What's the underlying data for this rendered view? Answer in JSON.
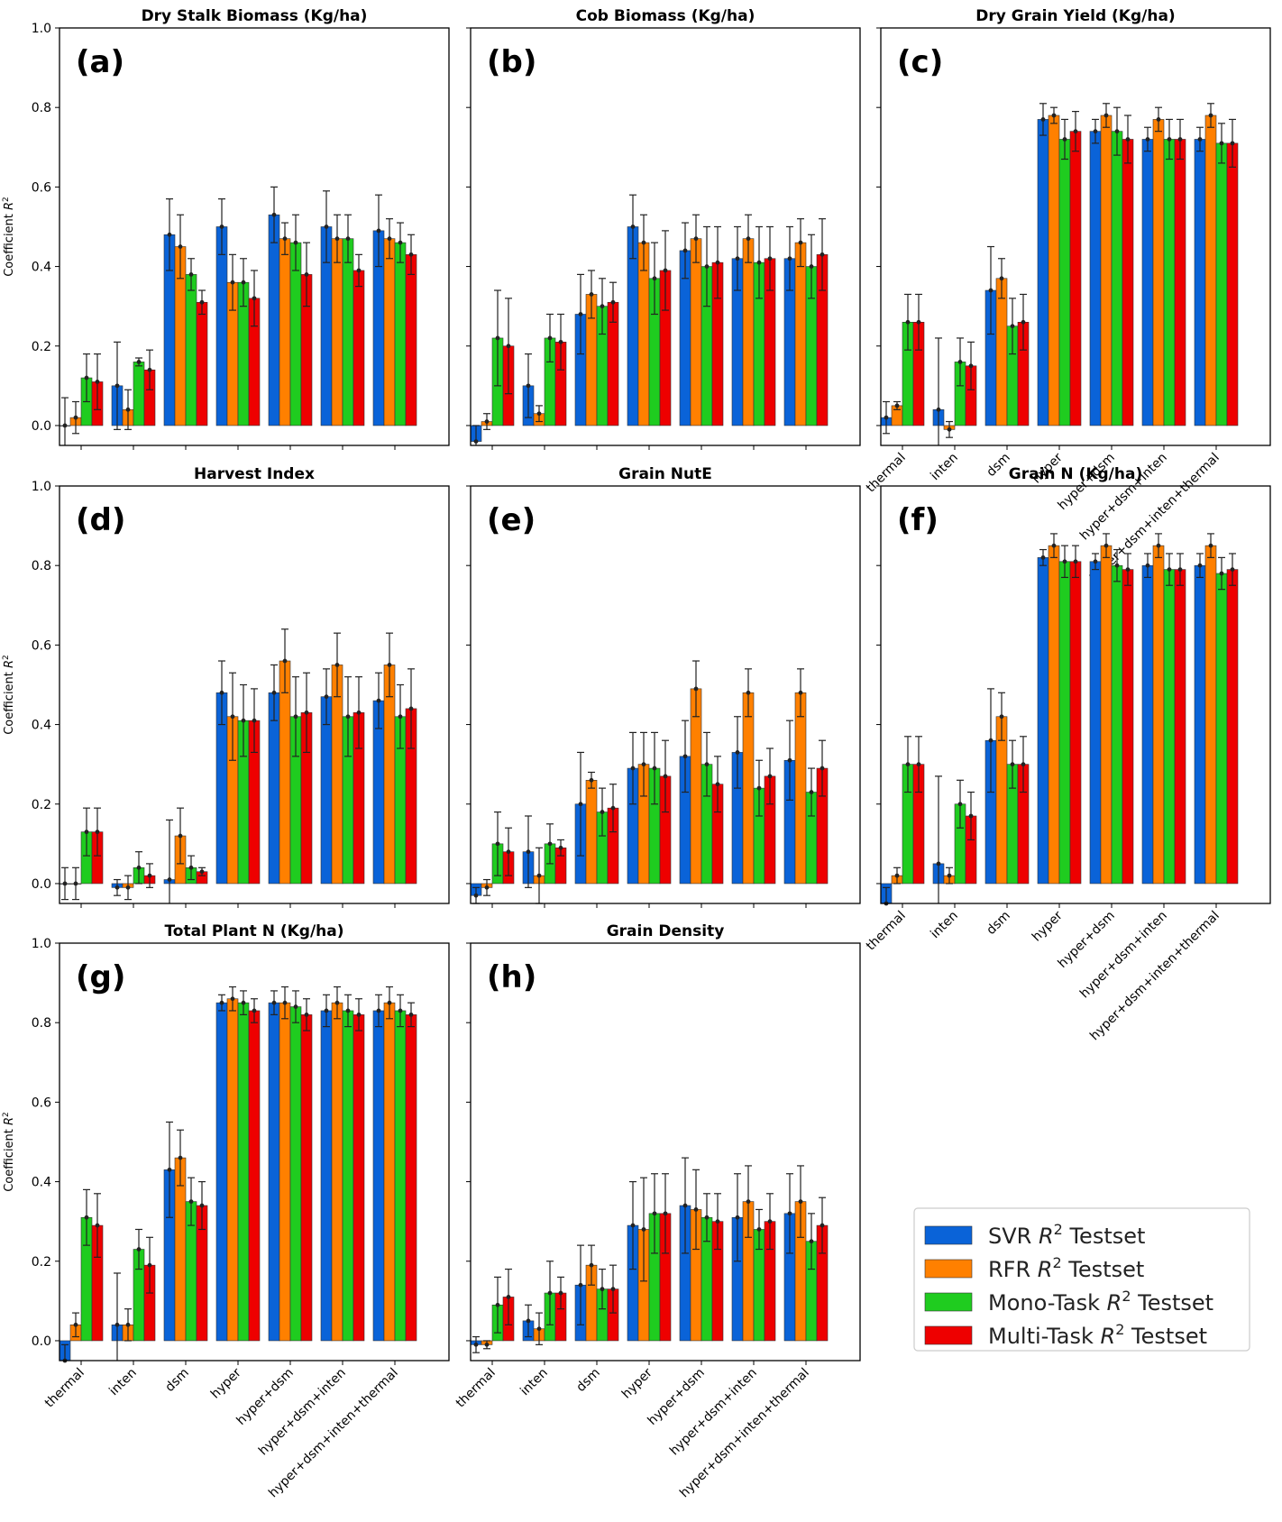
{
  "chart_data": {
    "type": "bar",
    "categories": [
      "thermal",
      "inten",
      "dsm",
      "hyper",
      "hyper+dsm",
      "hyper+dsm+inten",
      "hyper+dsm+inten+thermal"
    ],
    "ylabel": "Coefficient R²",
    "ylabel_parts": {
      "base": "Coefficient ",
      "var": "R",
      "sup": "2"
    },
    "ylim": [
      -0.05,
      1.0
    ],
    "yticks": [
      "0.0",
      "0.2",
      "0.4",
      "0.6",
      "0.8",
      "1.0"
    ],
    "series_names": [
      "SVR",
      "RFR",
      "Mono-Task",
      "Multi-Task"
    ],
    "series_colors": [
      "#0a63d8",
      "#ff8000",
      "#1fcc1f",
      "#ee0000"
    ],
    "legend": {
      "placement": "lower-right",
      "items": [
        {
          "pre": "SVR ",
          "var": "R",
          "sup": "2",
          "post": " Testset"
        },
        {
          "pre": "RFR ",
          "var": "R",
          "sup": "2",
          "post": " Testset"
        },
        {
          "pre": "Mono-Task ",
          "var": "R",
          "sup": "2",
          "post": " Testset"
        },
        {
          "pre": "Multi-Task ",
          "var": "R",
          "sup": "2",
          "post": " Testset"
        }
      ]
    },
    "panels": [
      {
        "label": "(a)",
        "title": "Dry Stalk Biomass (Kg/ha)",
        "values": [
          [
            0.0,
            0.1,
            0.48,
            0.5,
            0.53,
            0.5,
            0.49
          ],
          [
            0.02,
            0.04,
            0.45,
            0.36,
            0.47,
            0.47,
            0.47
          ],
          [
            0.12,
            0.16,
            0.38,
            0.36,
            0.46,
            0.47,
            0.46
          ],
          [
            0.11,
            0.14,
            0.31,
            0.32,
            0.38,
            0.39,
            0.43
          ]
        ],
        "errors": [
          [
            0.07,
            0.11,
            0.09,
            0.07,
            0.07,
            0.09,
            0.09
          ],
          [
            0.04,
            0.05,
            0.08,
            0.07,
            0.04,
            0.06,
            0.05
          ],
          [
            0.06,
            0.01,
            0.04,
            0.06,
            0.07,
            0.06,
            0.05
          ],
          [
            0.07,
            0.05,
            0.03,
            0.07,
            0.08,
            0.04,
            0.05
          ]
        ]
      },
      {
        "label": "(b)",
        "title": "Cob Biomass (Kg/ha)",
        "values": [
          [
            -0.04,
            0.1,
            0.28,
            0.5,
            0.44,
            0.42,
            0.42
          ],
          [
            0.01,
            0.03,
            0.33,
            0.46,
            0.47,
            0.47,
            0.46
          ],
          [
            0.22,
            0.22,
            0.3,
            0.37,
            0.4,
            0.41,
            0.4
          ],
          [
            0.2,
            0.21,
            0.31,
            0.39,
            0.41,
            0.42,
            0.43
          ]
        ],
        "errors": [
          [
            0.04,
            0.08,
            0.1,
            0.08,
            0.07,
            0.08,
            0.08
          ],
          [
            0.02,
            0.02,
            0.06,
            0.07,
            0.06,
            0.06,
            0.06
          ],
          [
            0.12,
            0.06,
            0.07,
            0.09,
            0.1,
            0.09,
            0.08
          ],
          [
            0.12,
            0.07,
            0.05,
            0.1,
            0.09,
            0.08,
            0.09
          ]
        ]
      },
      {
        "label": "(c)",
        "title": "Dry Grain Yield (Kg/ha)",
        "values": [
          [
            0.02,
            0.04,
            0.34,
            0.77,
            0.74,
            0.72,
            0.72
          ],
          [
            0.05,
            -0.01,
            0.37,
            0.78,
            0.78,
            0.77,
            0.78
          ],
          [
            0.26,
            0.16,
            0.25,
            0.72,
            0.74,
            0.72,
            0.71
          ],
          [
            0.26,
            0.15,
            0.26,
            0.74,
            0.72,
            0.72,
            0.71
          ]
        ],
        "errors": [
          [
            0.04,
            0.18,
            0.11,
            0.04,
            0.03,
            0.03,
            0.03
          ],
          [
            0.01,
            0.02,
            0.05,
            0.02,
            0.03,
            0.03,
            0.03
          ],
          [
            0.07,
            0.06,
            0.07,
            0.05,
            0.06,
            0.05,
            0.05
          ],
          [
            0.07,
            0.06,
            0.07,
            0.05,
            0.06,
            0.05,
            0.06
          ]
        ]
      },
      {
        "label": "(d)",
        "title": "Harvest Index",
        "values": [
          [
            0.0,
            -0.01,
            0.01,
            0.48,
            0.48,
            0.47,
            0.46
          ],
          [
            0.0,
            -0.01,
            0.12,
            0.42,
            0.56,
            0.55,
            0.55
          ],
          [
            0.13,
            0.04,
            0.04,
            0.41,
            0.42,
            0.42,
            0.42
          ],
          [
            0.13,
            0.02,
            0.03,
            0.41,
            0.43,
            0.43,
            0.44
          ]
        ],
        "errors": [
          [
            0.04,
            0.02,
            0.15,
            0.08,
            0.07,
            0.07,
            0.07
          ],
          [
            0.04,
            0.03,
            0.07,
            0.11,
            0.08,
            0.08,
            0.08
          ],
          [
            0.06,
            0.04,
            0.03,
            0.09,
            0.1,
            0.1,
            0.08
          ],
          [
            0.06,
            0.03,
            0.01,
            0.08,
            0.1,
            0.09,
            0.1
          ]
        ]
      },
      {
        "label": "(e)",
        "title": "Grain NutE",
        "values": [
          [
            -0.03,
            0.08,
            0.2,
            0.29,
            0.32,
            0.33,
            0.31
          ],
          [
            -0.01,
            0.02,
            0.26,
            0.3,
            0.49,
            0.48,
            0.48
          ],
          [
            0.1,
            0.1,
            0.18,
            0.29,
            0.3,
            0.24,
            0.23
          ],
          [
            0.08,
            0.09,
            0.19,
            0.27,
            0.25,
            0.27,
            0.29
          ]
        ],
        "errors": [
          [
            0.02,
            0.09,
            0.13,
            0.09,
            0.09,
            0.09,
            0.1
          ],
          [
            0.02,
            0.07,
            0.02,
            0.08,
            0.07,
            0.06,
            0.06
          ],
          [
            0.08,
            0.05,
            0.06,
            0.09,
            0.08,
            0.07,
            0.06
          ],
          [
            0.06,
            0.02,
            0.06,
            0.09,
            0.07,
            0.07,
            0.07
          ]
        ]
      },
      {
        "label": "(f)",
        "title": "Grain N (Kg/ha)",
        "values": [
          [
            -0.05,
            0.05,
            0.36,
            0.82,
            0.81,
            0.8,
            0.8
          ],
          [
            0.02,
            0.02,
            0.42,
            0.85,
            0.85,
            0.85,
            0.85
          ],
          [
            0.3,
            0.2,
            0.3,
            0.81,
            0.8,
            0.79,
            0.78
          ],
          [
            0.3,
            0.17,
            0.3,
            0.81,
            0.79,
            0.79,
            0.79
          ]
        ],
        "errors": [
          [
            0.04,
            0.22,
            0.13,
            0.02,
            0.02,
            0.03,
            0.03
          ],
          [
            0.02,
            0.02,
            0.06,
            0.03,
            0.03,
            0.03,
            0.03
          ],
          [
            0.07,
            0.06,
            0.06,
            0.04,
            0.04,
            0.04,
            0.04
          ],
          [
            0.07,
            0.06,
            0.07,
            0.04,
            0.04,
            0.04,
            0.04
          ]
        ]
      },
      {
        "label": "(g)",
        "title": "Total Plant N (Kg/ha)",
        "values": [
          [
            -0.05,
            0.04,
            0.43,
            0.85,
            0.85,
            0.83,
            0.83
          ],
          [
            0.04,
            0.04,
            0.46,
            0.86,
            0.85,
            0.85,
            0.85
          ],
          [
            0.31,
            0.23,
            0.35,
            0.85,
            0.84,
            0.83,
            0.83
          ],
          [
            0.29,
            0.19,
            0.34,
            0.83,
            0.82,
            0.82,
            0.82
          ]
        ],
        "errors": [
          [
            0.04,
            0.13,
            0.12,
            0.02,
            0.03,
            0.04,
            0.04
          ],
          [
            0.03,
            0.04,
            0.07,
            0.03,
            0.04,
            0.04,
            0.04
          ],
          [
            0.07,
            0.05,
            0.06,
            0.03,
            0.04,
            0.04,
            0.04
          ],
          [
            0.08,
            0.07,
            0.06,
            0.03,
            0.04,
            0.04,
            0.03
          ]
        ]
      },
      {
        "label": "(h)",
        "title": "Grain Density",
        "values": [
          [
            -0.01,
            0.05,
            0.14,
            0.29,
            0.34,
            0.31,
            0.32
          ],
          [
            -0.01,
            0.03,
            0.19,
            0.28,
            0.33,
            0.35,
            0.35
          ],
          [
            0.09,
            0.12,
            0.13,
            0.32,
            0.31,
            0.28,
            0.25
          ],
          [
            0.11,
            0.12,
            0.13,
            0.32,
            0.3,
            0.3,
            0.29
          ]
        ],
        "errors": [
          [
            0.02,
            0.04,
            0.1,
            0.11,
            0.12,
            0.11,
            0.1
          ],
          [
            0.01,
            0.04,
            0.05,
            0.13,
            0.1,
            0.09,
            0.09
          ],
          [
            0.07,
            0.08,
            0.05,
            0.1,
            0.06,
            0.05,
            0.07
          ],
          [
            0.07,
            0.04,
            0.06,
            0.1,
            0.07,
            0.07,
            0.07
          ]
        ]
      }
    ]
  }
}
